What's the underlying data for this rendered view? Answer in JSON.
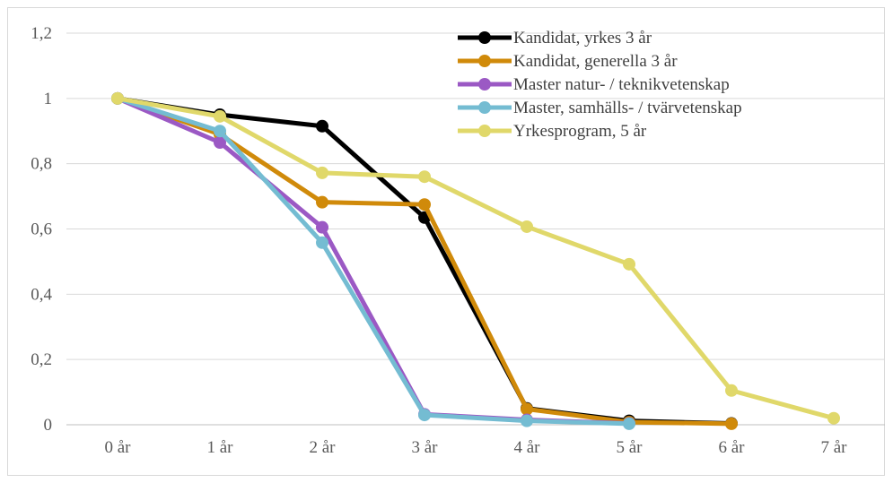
{
  "chart_data": {
    "type": "line",
    "title": "",
    "xlabel": "",
    "ylabel": "",
    "categories": [
      "0 år",
      "1 år",
      "2 år",
      "3 år",
      "4 år",
      "5 år",
      "6 år",
      "7 år"
    ],
    "y_ticks": [
      "0",
      "0,2",
      "0,4",
      "0,6",
      "0,8",
      "1",
      "1,2"
    ],
    "ylim": [
      0,
      1.2
    ],
    "grid": true,
    "legend_position": "top-right",
    "series": [
      {
        "name": "Kandidat, yrkes 3 år",
        "color": "#000000",
        "values": [
          1.0,
          0.95,
          0.915,
          0.635,
          0.05,
          0.012,
          0.004,
          null
        ]
      },
      {
        "name": "Kandidat, generella 3 år",
        "color": "#d08a0a",
        "values": [
          1.0,
          0.89,
          0.682,
          0.675,
          0.048,
          0.008,
          0.003,
          null
        ]
      },
      {
        "name": "Master natur- / teknikvetenskap",
        "color": "#9b59c4",
        "values": [
          1.0,
          0.865,
          0.605,
          0.032,
          0.015,
          0.004,
          null,
          null
        ]
      },
      {
        "name": "Master, samhälls- / tvärvetenskap",
        "color": "#74bcd2",
        "values": [
          1.0,
          0.9,
          0.558,
          0.03,
          0.012,
          0.003,
          null,
          null
        ]
      },
      {
        "name": "Yrkesprogram, 5 år",
        "color": "#e0d86a",
        "values": [
          1.0,
          0.945,
          0.772,
          0.76,
          0.607,
          0.492,
          0.105,
          0.02
        ]
      }
    ]
  }
}
